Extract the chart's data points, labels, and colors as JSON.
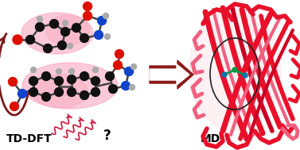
{
  "background_color": "#ffffff",
  "pink_glow_color": "#f8a0b8",
  "label_tddft": "TD-DFT",
  "label_md": "MD",
  "question_mark": "?",
  "arrow_color": "#8b1a1a",
  "text_color": "#000000",
  "label_fontsize": 10,
  "fig_width": 3.77,
  "fig_height": 1.89,
  "curve_arrow_color": "#7b1a1a",
  "protein_color": "#e8102a",
  "protein_pink": "#f080a0",
  "wave_color": "#cc2244",
  "bond_color": "#444444",
  "atom_black": "#111111",
  "atom_red": "#dd1100",
  "atom_blue": "#1144cc",
  "atom_gray": "#aaaaaa",
  "atom_dark_gray": "#666666"
}
